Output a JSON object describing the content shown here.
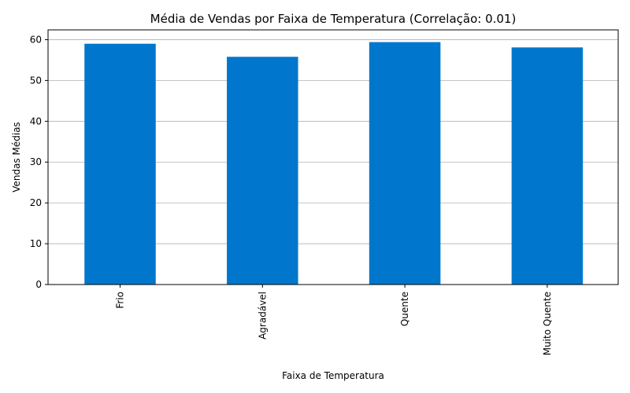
{
  "chart_data": {
    "type": "bar",
    "title": "Média de Vendas por Faixa de Temperatura (Correlação: 0.01)",
    "xlabel": "Faixa de Temperatura",
    "ylabel": "Vendas Médias",
    "categories": [
      "Frio",
      "Agradável",
      "Quente",
      "Muito Quente"
    ],
    "values": [
      59.0,
      55.8,
      59.4,
      58.1
    ],
    "ylim": [
      0,
      62.4
    ],
    "yticks": [
      0,
      10,
      20,
      30,
      40,
      50,
      60
    ],
    "grid": "y",
    "bar_color": "#0077cc"
  }
}
